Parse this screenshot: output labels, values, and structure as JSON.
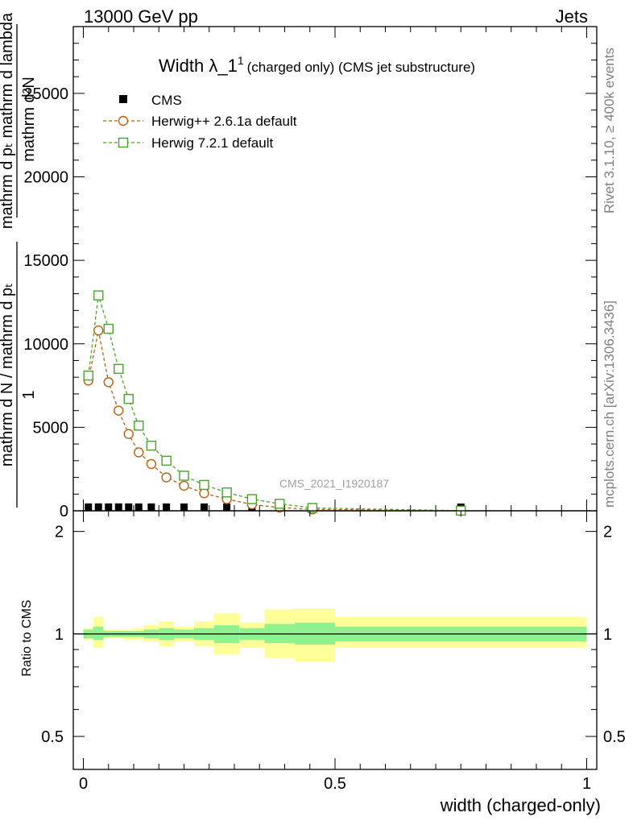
{
  "header": {
    "left": "13000 GeV pp",
    "right": "Jets"
  },
  "side_labels": {
    "rivet": "Rivet 3.1.10, ≥ 400k events",
    "mcplots": "mcplots.cern.ch [arXiv:1306.3436]"
  },
  "chart_data": [
    {
      "type": "line",
      "panel": "main",
      "title": "Width λ_1",
      "title_superscript": "1",
      "title_suffix": "(charged only) (CMS jet substructure)",
      "watermark": "CMS_2021_I1920187",
      "xlabel": "",
      "ylabel_numerator": "mathrm d²N",
      "ylabel_denominator": "mathrm d pₜ mathrm d lambda",
      "ylabel_prefix_numerator": "1",
      "ylabel_prefix_denominator": "mathrm d N / mathrm d pₜ",
      "xlim": [
        -0.02,
        1.02
      ],
      "ylim": [
        0,
        29000
      ],
      "yticks": [
        0,
        5000,
        10000,
        15000,
        20000,
        25000
      ],
      "ytick_labels": [
        "0",
        "5000",
        "10000",
        "15000",
        "20000",
        "25000"
      ],
      "legend": [
        {
          "name": "CMS",
          "marker": "filled-square",
          "color": "#000000"
        },
        {
          "name": "Herwig++ 2.6.1a default",
          "marker": "open-circle",
          "color": "#b8600f"
        },
        {
          "name": "Herwig 7.2.1 default",
          "marker": "open-square",
          "color": "#4aa32b"
        }
      ],
      "series": [
        {
          "name": "CMS",
          "x": [
            0.01,
            0.03,
            0.05,
            0.07,
            0.09,
            0.11,
            0.135,
            0.165,
            0.2,
            0.24,
            0.285,
            0.335,
            0.39,
            0.455,
            0.75
          ],
          "y": [
            8,
            10,
            9,
            9,
            8,
            7,
            7,
            6,
            6,
            5,
            5,
            5,
            4,
            3,
            1
          ]
        },
        {
          "name": "Herwig++ 2.6.1a default",
          "x": [
            0.01,
            0.03,
            0.05,
            0.07,
            0.09,
            0.11,
            0.135,
            0.165,
            0.2,
            0.24,
            0.285,
            0.335,
            0.39,
            0.455,
            0.75
          ],
          "y": [
            7800,
            10800,
            7700,
            6000,
            4600,
            3500,
            2800,
            2000,
            1500,
            1050,
            700,
            380,
            190,
            80,
            5
          ]
        },
        {
          "name": "Herwig 7.2.1 default",
          "x": [
            0.01,
            0.03,
            0.05,
            0.07,
            0.09,
            0.11,
            0.135,
            0.165,
            0.2,
            0.24,
            0.285,
            0.335,
            0.39,
            0.455,
            0.75
          ],
          "y": [
            8100,
            12900,
            10900,
            8500,
            6700,
            5100,
            3900,
            3000,
            2100,
            1550,
            1100,
            700,
            420,
            170,
            8
          ]
        }
      ]
    },
    {
      "type": "area",
      "panel": "ratio",
      "ylabel": "Ratio to CMS",
      "xlabel": "width (charged-only)",
      "xlim": [
        -0.02,
        1.02
      ],
      "ylim": [
        0.4,
        2.3
      ],
      "yscale": "log",
      "yticks": [
        0.5,
        1,
        2
      ],
      "ytick_labels": [
        "0.5",
        "1",
        "2"
      ],
      "xticks": [
        0,
        0.5,
        1
      ],
      "xtick_labels": [
        "0",
        "0.5",
        "1"
      ],
      "bins": [
        {
          "x0": 0.0,
          "x1": 0.02,
          "inner": [
            0.97,
            1.03
          ],
          "outer": [
            0.96,
            1.04
          ]
        },
        {
          "x0": 0.02,
          "x1": 0.04,
          "inner": [
            0.96,
            1.05
          ],
          "outer": [
            0.91,
            1.12
          ]
        },
        {
          "x0": 0.04,
          "x1": 0.06,
          "inner": [
            0.98,
            1.02
          ],
          "outer": [
            0.97,
            1.03
          ]
        },
        {
          "x0": 0.06,
          "x1": 0.08,
          "inner": [
            0.98,
            1.02
          ],
          "outer": [
            0.97,
            1.03
          ]
        },
        {
          "x0": 0.08,
          "x1": 0.1,
          "inner": [
            0.98,
            1.02
          ],
          "outer": [
            0.96,
            1.03
          ]
        },
        {
          "x0": 0.1,
          "x1": 0.12,
          "inner": [
            0.98,
            1.02
          ],
          "outer": [
            0.96,
            1.04
          ]
        },
        {
          "x0": 0.12,
          "x1": 0.15,
          "inner": [
            0.97,
            1.03
          ],
          "outer": [
            0.95,
            1.06
          ]
        },
        {
          "x0": 0.15,
          "x1": 0.18,
          "inner": [
            0.96,
            1.04
          ],
          "outer": [
            0.92,
            1.09
          ]
        },
        {
          "x0": 0.18,
          "x1": 0.22,
          "inner": [
            0.97,
            1.03
          ],
          "outer": [
            0.95,
            1.05
          ]
        },
        {
          "x0": 0.22,
          "x1": 0.26,
          "inner": [
            0.96,
            1.04
          ],
          "outer": [
            0.92,
            1.09
          ]
        },
        {
          "x0": 0.26,
          "x1": 0.31,
          "inner": [
            0.94,
            1.06
          ],
          "outer": [
            0.87,
            1.15
          ]
        },
        {
          "x0": 0.31,
          "x1": 0.36,
          "inner": [
            0.96,
            1.04
          ],
          "outer": [
            0.91,
            1.08
          ]
        },
        {
          "x0": 0.36,
          "x1": 0.42,
          "inner": [
            0.94,
            1.07
          ],
          "outer": [
            0.85,
            1.18
          ]
        },
        {
          "x0": 0.42,
          "x1": 0.5,
          "inner": [
            0.93,
            1.08
          ],
          "outer": [
            0.83,
            1.19
          ]
        },
        {
          "x0": 0.5,
          "x1": 1.0,
          "inner": [
            0.95,
            1.05
          ],
          "outer": [
            0.91,
            1.12
          ]
        }
      ]
    }
  ]
}
